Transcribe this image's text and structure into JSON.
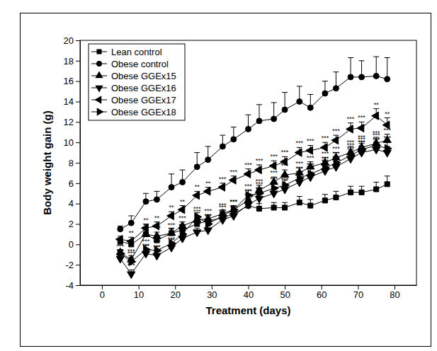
{
  "chart_data": {
    "type": "line",
    "x_label": "Treatment (days)",
    "y_label": "Body weight gain (g)",
    "xlim": [
      -6,
      86
    ],
    "ylim": [
      -4,
      20
    ],
    "xticks": [
      0,
      10,
      20,
      30,
      40,
      50,
      60,
      70,
      80
    ],
    "yticks": [
      -4,
      -2,
      0,
      2,
      4,
      6,
      8,
      10,
      12,
      14,
      16,
      18,
      20
    ],
    "legend": "upper left",
    "x": [
      5,
      8,
      12,
      15,
      19,
      22,
      26,
      29,
      33,
      36,
      40,
      43,
      47,
      50,
      54,
      57,
      61,
      64,
      68,
      71,
      75,
      78
    ],
    "series": [
      {
        "name": "Lean control",
        "color": "#000000",
        "marker": "square",
        "values": [
          0.3,
          0.0,
          1.0,
          0.4,
          1.1,
          1.4,
          2.0,
          2.3,
          2.6,
          3.0,
          3.8,
          3.5,
          3.6,
          3.6,
          4.1,
          3.8,
          4.3,
          4.6,
          5.1,
          5.1,
          5.4,
          5.9
        ],
        "errors": [
          0.3,
          0.4,
          0.4,
          0.4,
          0.5,
          0.5,
          0.5,
          0.5,
          0.5,
          0.5,
          0.5,
          0.5,
          0.5,
          0.5,
          0.6,
          0.6,
          0.6,
          0.6,
          0.6,
          0.6,
          0.7,
          0.8
        ]
      },
      {
        "name": "Obese control",
        "color": "#000000",
        "marker": "circle",
        "values": [
          1.5,
          2.1,
          4.2,
          4.4,
          5.6,
          6.1,
          7.6,
          8.3,
          9.6,
          10.3,
          11.3,
          12.1,
          12.3,
          13.2,
          14.0,
          13.4,
          14.8,
          15.3,
          16.4,
          16.4,
          16.5,
          16.2
        ],
        "errors": [
          0.3,
          0.7,
          0.8,
          0.8,
          1.3,
          1.2,
          1.4,
          1.3,
          1.1,
          1.2,
          1.4,
          1.6,
          1.6,
          1.7,
          1.5,
          1.3,
          1.2,
          1.6,
          1.9,
          1.6,
          1.9,
          2.1
        ]
      },
      {
        "name": "Obese GGEx15",
        "color": "#000000",
        "marker": "triangle-up",
        "values": [
          -0.8,
          -1.5,
          1.0,
          0.8,
          1.1,
          1.8,
          2.4,
          2.5,
          3.0,
          3.4,
          4.3,
          5.3,
          6.1,
          6.8,
          7.0,
          7.6,
          8.0,
          8.5,
          9.0,
          9.5,
          9.9,
          10.2
        ],
        "errors": [
          0.3,
          0.4,
          0.4,
          0.4,
          0.4,
          0.4,
          0.4,
          0.4,
          0.4,
          0.4,
          0.5,
          0.5,
          0.5,
          0.5,
          0.5,
          0.5,
          0.5,
          0.5,
          0.6,
          0.6,
          0.6,
          0.6
        ],
        "significance": [
          "**",
          "***",
          "**",
          "***",
          "***",
          "***",
          "***",
          "***",
          "***",
          "***",
          "***",
          "***",
          "***",
          "***",
          "***",
          "***",
          "***",
          "***",
          "***",
          "***",
          "***",
          "***"
        ]
      },
      {
        "name": "Obese GGEx16",
        "color": "#000000",
        "marker": "triangle-down",
        "values": [
          -1.4,
          -2.9,
          -0.9,
          -1.1,
          -0.3,
          0.6,
          1.2,
          1.4,
          2.4,
          2.8,
          3.9,
          4.5,
          5.0,
          5.4,
          6.1,
          6.6,
          7.2,
          7.6,
          8.4,
          9.0,
          9.3,
          9.0
        ],
        "errors": [
          0.3,
          0.4,
          0.4,
          0.4,
          0.4,
          0.4,
          0.4,
          0.4,
          0.4,
          0.4,
          0.5,
          0.5,
          0.5,
          0.5,
          0.5,
          0.5,
          0.5,
          0.5,
          0.6,
          0.6,
          0.6,
          0.6
        ],
        "significance": [
          "***",
          "***",
          "***",
          "***",
          "***",
          "***",
          "***",
          "***",
          "***",
          "***",
          "***",
          "***",
          "***",
          "***",
          "***",
          "***",
          "***",
          "***",
          "***",
          "***",
          "***",
          "***"
        ]
      },
      {
        "name": "Obese GGEx17",
        "color": "#000000",
        "marker": "triangle-left",
        "values": [
          0.5,
          0.3,
          1.6,
          1.8,
          2.8,
          3.4,
          4.8,
          5.2,
          5.6,
          6.3,
          6.9,
          7.3,
          7.7,
          8.1,
          9.0,
          9.2,
          9.5,
          10.2,
          11.3,
          11.4,
          12.6,
          11.7
        ],
        "errors": [
          0.3,
          0.4,
          0.4,
          0.4,
          0.4,
          0.4,
          0.4,
          0.4,
          0.4,
          0.4,
          0.5,
          0.5,
          0.5,
          0.5,
          0.5,
          0.5,
          0.5,
          0.5,
          0.6,
          0.6,
          0.7,
          0.7
        ],
        "significance": [
          "*",
          "**",
          "**",
          "**",
          "**",
          "**",
          "**",
          "**",
          "***",
          "***",
          "***",
          "***",
          "***",
          "***",
          "***",
          "***",
          "***",
          "***",
          "***",
          "***",
          "**",
          "**"
        ]
      },
      {
        "name": "Obese GGEx18",
        "color": "#000000",
        "marker": "triangle-right",
        "values": [
          -0.9,
          -1.7,
          -0.5,
          -0.6,
          0.1,
          1.0,
          2.7,
          2.0,
          2.8,
          3.4,
          4.8,
          5.0,
          5.5,
          5.8,
          6.5,
          6.9,
          7.5,
          8.0,
          8.7,
          9.3,
          9.7,
          9.4
        ],
        "errors": [
          0.3,
          0.4,
          0.4,
          0.4,
          0.4,
          0.4,
          0.4,
          0.4,
          0.4,
          0.4,
          0.5,
          0.5,
          0.5,
          0.5,
          0.5,
          0.5,
          0.5,
          0.5,
          0.6,
          0.6,
          0.6,
          0.6
        ],
        "significance": [
          "***",
          "***",
          "***",
          "***",
          "***",
          "***",
          "***",
          "***",
          "***",
          "***",
          "***",
          "***",
          "***",
          "***",
          "***",
          "***",
          "***",
          "***",
          "***",
          "***",
          "***",
          "***"
        ]
      }
    ]
  }
}
